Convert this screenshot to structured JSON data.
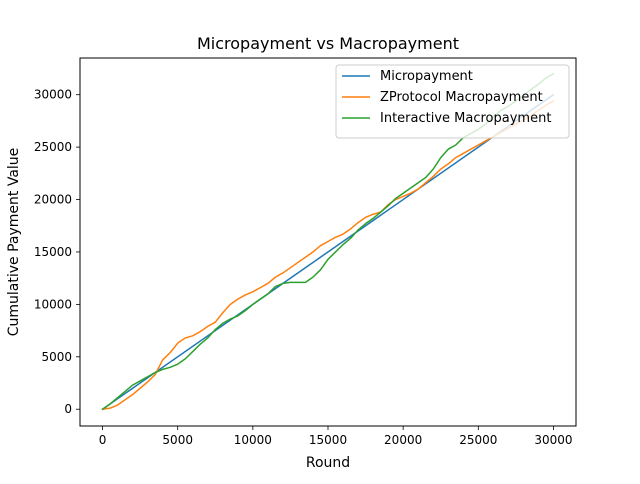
{
  "chart_data": {
    "type": "line",
    "title": "Micropayment vs Macropayment",
    "xlabel": "Round",
    "ylabel": "Cumulative Payment Value",
    "xlim": [
      -1500,
      31500
    ],
    "ylim": [
      -1600,
      33500
    ],
    "xticks": [
      0,
      5000,
      10000,
      15000,
      20000,
      25000,
      30000
    ],
    "yticks": [
      0,
      5000,
      10000,
      15000,
      20000,
      25000,
      30000
    ],
    "grid": false,
    "legend_position": "top-right",
    "series": [
      {
        "name": "Micropayment",
        "color": "#1f77b4",
        "x": [
          0,
          30000
        ],
        "y": [
          0,
          30000
        ]
      },
      {
        "name": "ZProtocol Macropayment",
        "color": "#ff7f0e",
        "x": [
          0,
          500,
          1000,
          1500,
          2000,
          2500,
          3000,
          3500,
          4000,
          4500,
          5000,
          5500,
          6000,
          6500,
          7000,
          7500,
          8000,
          8500,
          9000,
          9500,
          10000,
          10500,
          11000,
          11500,
          12000,
          12500,
          13000,
          13500,
          14000,
          14500,
          15000,
          15500,
          16000,
          16500,
          17000,
          17500,
          18000,
          18500,
          19000,
          19500,
          20000,
          20500,
          21000,
          21500,
          22000,
          22500,
          23000,
          23500,
          24000,
          24500,
          25000,
          25500,
          26000,
          26500,
          27000,
          27500,
          28000,
          28500,
          29000,
          29500,
          30000
        ],
        "y": [
          0,
          100,
          400,
          900,
          1400,
          2000,
          2600,
          3300,
          4700,
          5400,
          6300,
          6800,
          7000,
          7400,
          7900,
          8300,
          9200,
          10000,
          10500,
          10900,
          11200,
          11600,
          12000,
          12600,
          13000,
          13500,
          14000,
          14500,
          15000,
          15600,
          16000,
          16400,
          16700,
          17200,
          17800,
          18300,
          18600,
          18800,
          19500,
          20000,
          20300,
          20600,
          21000,
          21600,
          22200,
          22900,
          23400,
          24000,
          24400,
          24800,
          25200,
          25600,
          26000,
          26400,
          26800,
          27200,
          27600,
          28000,
          28500,
          29000,
          29400
        ]
      },
      {
        "name": "Interactive Macropayment",
        "color": "#2ca02c",
        "x": [
          0,
          500,
          1000,
          1500,
          2000,
          2500,
          3000,
          3500,
          4000,
          4500,
          5000,
          5500,
          6000,
          6500,
          7000,
          7500,
          8000,
          8500,
          9000,
          9500,
          10000,
          10500,
          11000,
          11500,
          12000,
          12500,
          13000,
          13500,
          14000,
          14500,
          15000,
          15500,
          16000,
          16500,
          17000,
          17500,
          18000,
          18500,
          19000,
          19500,
          20000,
          20500,
          21000,
          21500,
          22000,
          22500,
          23000,
          23500,
          24000,
          24500,
          25000,
          25500,
          26000,
          26500,
          27000,
          27500,
          28000,
          28500,
          29000,
          29500,
          30000
        ],
        "y": [
          0,
          500,
          1100,
          1700,
          2300,
          2700,
          3100,
          3500,
          3800,
          4000,
          4300,
          4800,
          5500,
          6200,
          6800,
          7600,
          8200,
          8600,
          8900,
          9400,
          10000,
          10500,
          11000,
          11700,
          12000,
          12100,
          12100,
          12100,
          12600,
          13300,
          14300,
          15000,
          15700,
          16300,
          17100,
          17700,
          18200,
          18800,
          19400,
          20100,
          20600,
          21100,
          21600,
          22100,
          22900,
          24000,
          24800,
          25200,
          25900,
          26300,
          26700,
          27200,
          27900,
          28500,
          28900,
          29400,
          29900,
          30500,
          31000,
          31600,
          32000
        ]
      }
    ]
  }
}
